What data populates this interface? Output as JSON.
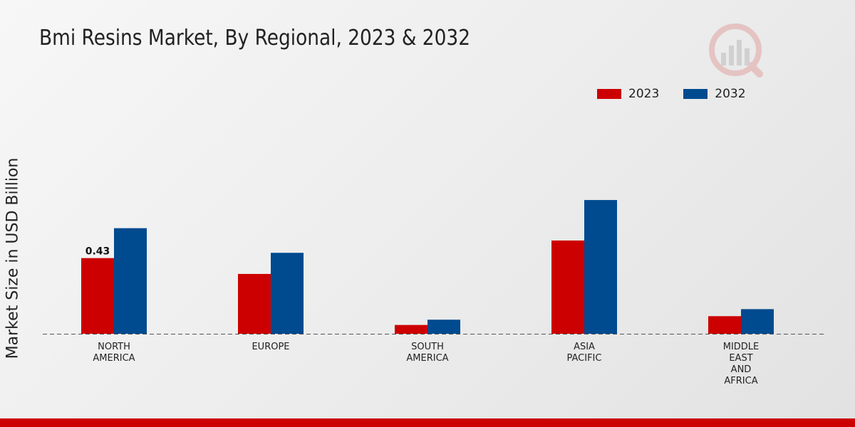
{
  "chart_data": {
    "type": "bar",
    "title": "Bmi Resins Market, By Regional, 2023 & 2032",
    "xlabel": "",
    "ylabel": "Market Size in USD Billion",
    "categories": [
      "NORTH\nAMERICA",
      "EUROPE",
      "SOUTH\nAMERICA",
      "ASIA\nPACIFIC",
      "MIDDLE\nEAST\nAND\nAFRICA"
    ],
    "series": [
      {
        "name": "2023",
        "color": "#cc0000",
        "values": [
          0.43,
          0.34,
          0.05,
          0.53,
          0.1
        ]
      },
      {
        "name": "2032",
        "color": "#004a8f",
        "values": [
          0.6,
          0.46,
          0.08,
          0.76,
          0.14
        ]
      }
    ],
    "data_labels": [
      {
        "series": 0,
        "index": 0,
        "text": "0.43"
      }
    ],
    "ylim": [
      0,
      1.1
    ],
    "grid": false,
    "legend_position": "top-right"
  }
}
